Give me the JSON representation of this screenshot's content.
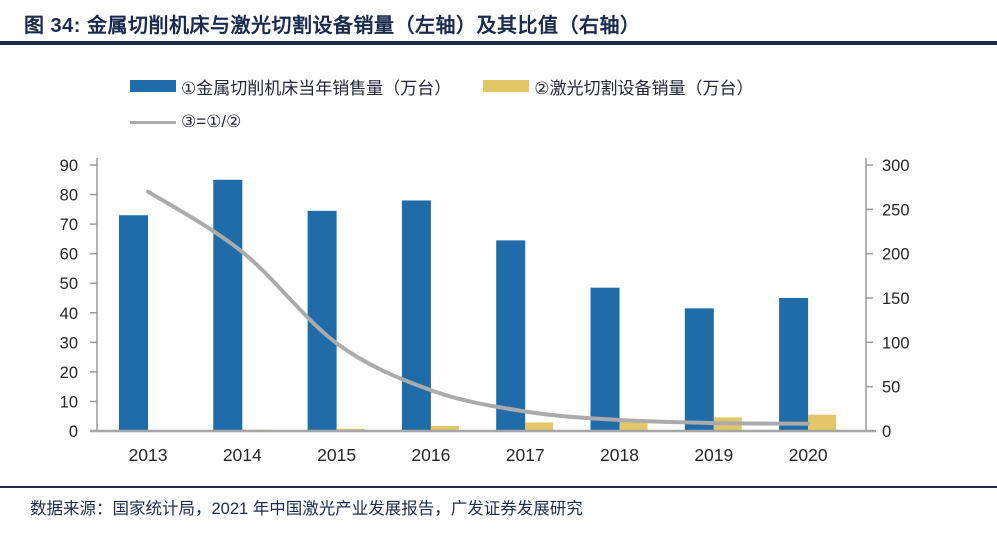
{
  "title": {
    "text": "图 34:  金属切削机床与激光切割设备销量（左轴）及其比值（右轴）"
  },
  "footer": {
    "text": "数据来源：国家统计局，2021 年中国激光产业发展报告，广发证券发展研究"
  },
  "colors": {
    "accent_navy": "#1b2b4d",
    "bar_blue": "#1F6CA8",
    "bar_yellow": "#E3C767",
    "line_gray": "#ABABAB",
    "axis_line": "#9a9a9a",
    "baseline": "#a6a6a6",
    "axis_text": "#262626"
  },
  "chart_data": {
    "type": "bar",
    "title": "金属切削机床与激光切割设备销量（左轴）及其比值（右轴）",
    "categories": [
      "2013",
      "2014",
      "2015",
      "2016",
      "2017",
      "2018",
      "2019",
      "2020"
    ],
    "series": [
      {
        "name": "①金属切削机床当年销售量（万台）",
        "type": "bar",
        "axis": "left",
        "color": "#1F6CA8",
        "values": [
          73,
          85,
          74.5,
          78,
          64.5,
          48.5,
          41.5,
          45
        ]
      },
      {
        "name": "②激光切割设备销量（万台）",
        "type": "bar",
        "axis": "left",
        "color": "#E3C767",
        "values": [
          0.27,
          0.42,
          0.75,
          1.7,
          2.9,
          3.9,
          4.6,
          5.5
        ]
      },
      {
        "name": "③=①/②",
        "type": "line",
        "axis": "right",
        "color": "#ABABAB",
        "values": [
          270,
          202,
          99,
          46,
          22,
          12.4,
          9,
          8.2
        ]
      }
    ],
    "left_axis": {
      "min": 0,
      "max": 90,
      "step": 10
    },
    "right_axis": {
      "min": 0,
      "max": 300,
      "step": 50
    },
    "grid": false,
    "legend_position": "top-left"
  }
}
